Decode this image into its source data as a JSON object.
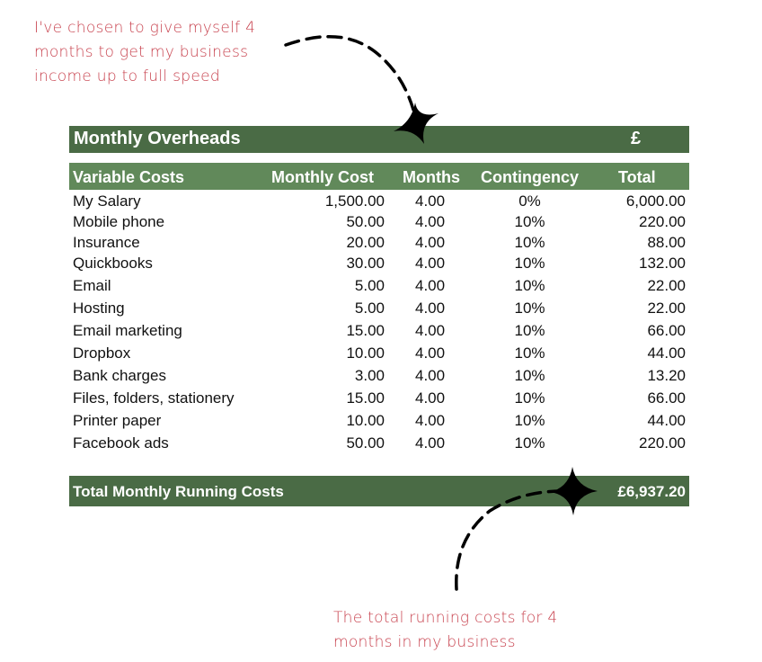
{
  "annotations": {
    "top_note": "I've chosen to give myself 4 months to get my business income up to full speed",
    "bottom_note": "The total running costs for 4 months in my business",
    "accent_color": "#c8434f"
  },
  "table": {
    "title": "Monthly Overheads",
    "currency_symbol": "£",
    "columns": {
      "name": "Variable Costs",
      "cost": "Monthly Cost",
      "months": "Months",
      "contingency": "Contingency",
      "total": "Total"
    },
    "rows": [
      {
        "name": "My Salary",
        "cost": "1,500.00",
        "months": "4.00",
        "contingency": "0%",
        "total": "6,000.00"
      },
      {
        "name": "Mobile phone",
        "cost": "50.00",
        "months": "4.00",
        "contingency": "10%",
        "total": "220.00"
      },
      {
        "name": "Insurance",
        "cost": "20.00",
        "months": "4.00",
        "contingency": "10%",
        "total": "88.00"
      },
      {
        "name": "Quickbooks",
        "cost": "30.00",
        "months": "4.00",
        "contingency": "10%",
        "total": "132.00"
      },
      {
        "name": "Email",
        "cost": "5.00",
        "months": "4.00",
        "contingency": "10%",
        "total": "22.00"
      },
      {
        "name": "Hosting",
        "cost": "5.00",
        "months": "4.00",
        "contingency": "10%",
        "total": "22.00"
      },
      {
        "name": "Email marketing",
        "cost": "15.00",
        "months": "4.00",
        "contingency": "10%",
        "total": "66.00"
      },
      {
        "name": "Dropbox",
        "cost": "10.00",
        "months": "4.00",
        "contingency": "10%",
        "total": "44.00"
      },
      {
        "name": "Bank charges",
        "cost": "3.00",
        "months": "4.00",
        "contingency": "10%",
        "total": "13.20"
      },
      {
        "name": "Files, folders, stationery",
        "cost": "15.00",
        "months": "4.00",
        "contingency": "10%",
        "total": "66.00"
      },
      {
        "name": "Printer paper",
        "cost": "10.00",
        "months": "4.00",
        "contingency": "10%",
        "total": "44.00"
      },
      {
        "name": "Facebook ads",
        "cost": "50.00",
        "months": "4.00",
        "contingency": "10%",
        "total": "220.00"
      }
    ],
    "total_label": "Total Monthly Running Costs",
    "total_value": "£6,937.20",
    "colors": {
      "dark_green": "#4a6b45",
      "mid_green": "#61895a"
    }
  }
}
